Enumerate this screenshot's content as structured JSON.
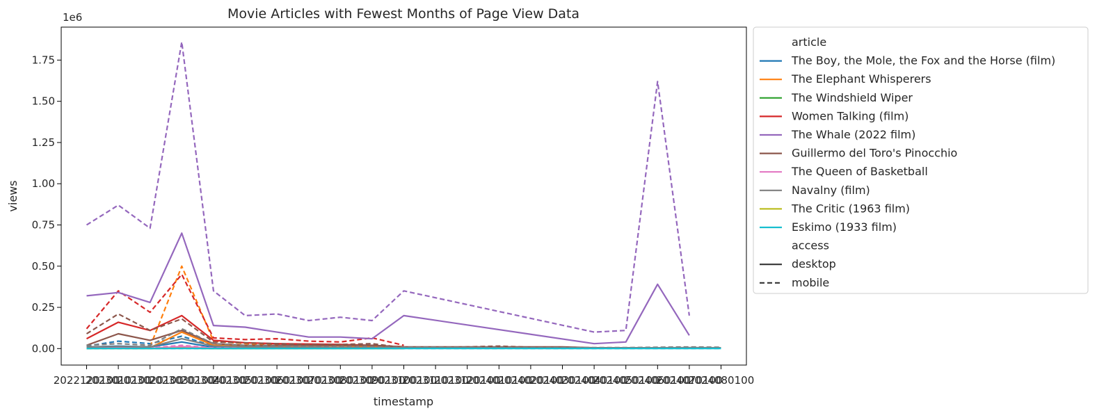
{
  "chart_data": {
    "type": "line",
    "title": "Movie Articles with Fewest Months of Page View Data",
    "xlabel": "timestamp",
    "ylabel": "views",
    "y_offset_label": "1e6",
    "ylim": [
      -0.1,
      1.95
    ],
    "yticks": [
      0,
      0.25,
      0.5,
      0.75,
      1.0,
      1.25,
      1.5,
      1.75
    ],
    "ytick_labels": [
      "0.00",
      "0.25",
      "0.50",
      "0.75",
      "1.00",
      "1.25",
      "1.50",
      "1.75"
    ],
    "xlim": [
      -0.8,
      20.8
    ],
    "xticks": [
      0,
      1,
      2,
      3,
      4,
      5,
      6,
      7,
      8,
      9,
      10,
      11,
      12,
      13,
      14,
      15,
      16,
      17,
      18,
      19,
      20
    ],
    "xtick_labels": [
      "2022120100",
      "2023010100",
      "2023020100",
      "2023030100",
      "2023040100",
      "2023050100",
      "2023060100",
      "2023070100",
      "2023080100",
      "2023090100",
      "2023100100",
      "2023110100",
      "2023120100",
      "2024010100",
      "2024020100",
      "2024030100",
      "2024040100",
      "2024050100",
      "2024060100",
      "2024070100",
      "2024080100"
    ],
    "grid": false,
    "legend_position": "outside-right",
    "legend": {
      "article_title": "article",
      "access_title": "access",
      "access_entries": [
        {
          "name": "desktop",
          "dash": "solid"
        },
        {
          "name": "mobile",
          "dash": "dashed"
        }
      ]
    },
    "series": [
      {
        "name": "The Boy, the Mole, the Fox and the Horse (film)",
        "color": "#1f77b4",
        "desktop": {
          "x": [
            0,
            1,
            2,
            3,
            4,
            5,
            6,
            7,
            8,
            9,
            10
          ],
          "y": [
            0.01,
            0.015,
            0.01,
            0.04,
            0.008,
            0.006,
            0.005,
            0.004,
            0.004,
            0.004,
            0.003
          ]
        },
        "mobile": {
          "x": [
            0,
            1,
            2,
            3,
            4,
            5,
            6,
            7,
            8,
            9,
            10
          ],
          "y": [
            0.015,
            0.045,
            0.03,
            0.075,
            0.015,
            0.012,
            0.01,
            0.009,
            0.008,
            0.008,
            0.006
          ]
        }
      },
      {
        "name": "The Elephant Whisperers",
        "color": "#ff7f0e",
        "desktop": {
          "x": [
            2,
            3,
            4,
            5,
            6,
            7,
            8,
            9,
            10
          ],
          "y": [
            0.005,
            0.1,
            0.02,
            0.012,
            0.01,
            0.008,
            0.007,
            0.006,
            0.005
          ]
        },
        "mobile": {
          "x": [
            2,
            3,
            4,
            5,
            6,
            7,
            8,
            9,
            10
          ],
          "y": [
            0.01,
            0.5,
            0.045,
            0.03,
            0.025,
            0.02,
            0.018,
            0.015,
            0.012
          ]
        }
      },
      {
        "name": "The Windshield Wiper",
        "color": "#2ca02c",
        "desktop": {
          "x": [
            0,
            1,
            2,
            3,
            4,
            5,
            6,
            7,
            8,
            9,
            10
          ],
          "y": [
            0.001,
            0.002,
            0.001,
            0.005,
            0.001,
            0.001,
            0.001,
            0.001,
            0.001,
            0.001,
            0.001
          ]
        },
        "mobile": {
          "x": [
            0,
            1,
            2,
            3,
            4,
            5,
            6,
            7,
            8,
            9,
            10
          ],
          "y": [
            0.001,
            0.003,
            0.002,
            0.008,
            0.002,
            0.001,
            0.001,
            0.001,
            0.001,
            0.001,
            0.001
          ]
        }
      },
      {
        "name": "Women Talking (film)",
        "color": "#d62728",
        "desktop": {
          "x": [
            0,
            1,
            2,
            3,
            4,
            5,
            6,
            7,
            8,
            9,
            10
          ],
          "y": [
            0.06,
            0.16,
            0.11,
            0.2,
            0.05,
            0.035,
            0.03,
            0.028,
            0.025,
            0.02,
            0.01
          ]
        },
        "mobile": {
          "x": [
            0,
            1,
            2,
            3,
            4,
            5,
            6,
            7,
            8,
            9,
            10
          ],
          "y": [
            0.12,
            0.35,
            0.22,
            0.45,
            0.065,
            0.055,
            0.06,
            0.045,
            0.04,
            0.065,
            0.02
          ]
        }
      },
      {
        "name": "The Whale (2022 film)",
        "color": "#9467bd",
        "desktop": {
          "x": [
            0,
            1,
            2,
            3,
            4,
            5,
            6,
            7,
            8,
            9,
            10,
            16,
            17,
            18,
            19
          ],
          "y": [
            0.32,
            0.34,
            0.28,
            0.7,
            0.14,
            0.13,
            0.1,
            0.07,
            0.07,
            0.06,
            0.2,
            0.03,
            0.04,
            0.39,
            0.08
          ]
        },
        "mobile": {
          "x": [
            0,
            1,
            2,
            3,
            4,
            5,
            6,
            7,
            8,
            9,
            10,
            16,
            17,
            18,
            19
          ],
          "y": [
            0.75,
            0.87,
            0.73,
            1.86,
            0.35,
            0.2,
            0.21,
            0.17,
            0.19,
            0.17,
            0.35,
            0.1,
            0.11,
            1.62,
            0.2
          ]
        }
      },
      {
        "name": "Guillermo del Toro's Pinocchio",
        "color": "#8c564b",
        "desktop": {
          "x": [
            0,
            1,
            2,
            3,
            4,
            5,
            6,
            7,
            8,
            9,
            10,
            11,
            12,
            13,
            14,
            15,
            16,
            17,
            18,
            19,
            20
          ],
          "y": [
            0.02,
            0.09,
            0.05,
            0.11,
            0.03,
            0.02,
            0.02,
            0.02,
            0.02,
            0.02,
            0.01,
            0.01,
            0.01,
            0.01,
            0.01,
            0.01,
            0.005,
            0.005,
            0.005,
            0.005,
            0.005
          ]
        },
        "mobile": {
          "x": [
            0,
            1,
            2,
            3,
            4,
            5,
            6,
            7,
            8,
            9,
            10,
            11,
            12,
            13,
            14,
            15,
            16,
            17,
            18,
            19,
            20
          ],
          "y": [
            0.09,
            0.21,
            0.11,
            0.18,
            0.04,
            0.035,
            0.03,
            0.025,
            0.025,
            0.03,
            0.005,
            0.008,
            0.01,
            0.015,
            0.008,
            0.006,
            0.005,
            0.005,
            0.004,
            0.004,
            0.003
          ]
        }
      },
      {
        "name": "The Queen of Basketball",
        "color": "#e377c2",
        "desktop": {
          "x": [
            0,
            1,
            2,
            3,
            4,
            5,
            6,
            7,
            8,
            9,
            10
          ],
          "y": [
            0.002,
            0.003,
            0.002,
            0.012,
            0.003,
            0.002,
            0.002,
            0.002,
            0.002,
            0.002,
            0.001
          ]
        },
        "mobile": {
          "x": [
            0,
            1,
            2,
            3,
            4,
            5,
            6,
            7,
            8,
            9,
            10
          ],
          "y": [
            0.003,
            0.005,
            0.004,
            0.02,
            0.004,
            0.003,
            0.003,
            0.003,
            0.003,
            0.003,
            0.002
          ]
        }
      },
      {
        "name": "Navalny (film)",
        "color": "#7f7f7f",
        "desktop": {
          "x": [
            0,
            1,
            2,
            3,
            4,
            5,
            6,
            7,
            8,
            9,
            10,
            11,
            12,
            13,
            14,
            15,
            16,
            17,
            18,
            19,
            20
          ],
          "y": [
            0.01,
            0.012,
            0.01,
            0.06,
            0.015,
            0.01,
            0.008,
            0.007,
            0.006,
            0.006,
            0.005,
            0.005,
            0.005,
            0.004,
            0.004,
            0.004,
            0.004,
            0.004,
            0.005,
            0.006,
            0.005
          ]
        },
        "mobile": {
          "x": [
            0,
            1,
            2,
            3,
            4,
            5,
            6,
            7,
            8,
            9,
            10,
            11,
            12,
            13,
            14,
            15,
            16,
            17,
            18,
            19,
            20
          ],
          "y": [
            0.02,
            0.03,
            0.02,
            0.12,
            0.03,
            0.02,
            0.015,
            0.012,
            0.01,
            0.01,
            0.008,
            0.008,
            0.007,
            0.007,
            0.006,
            0.006,
            0.006,
            0.006,
            0.008,
            0.01,
            0.008
          ]
        }
      },
      {
        "name": "The Critic (1963 film)",
        "color": "#bcbd22",
        "desktop": {
          "x": [
            0,
            1,
            2,
            3,
            4,
            5,
            6,
            7,
            8,
            9,
            10
          ],
          "y": [
            0.001,
            0.001,
            0.001,
            0.002,
            0.001,
            0.001,
            0.001,
            0.001,
            0.001,
            0.001,
            0.001
          ]
        },
        "mobile": {
          "x": [
            0,
            1,
            2,
            3,
            4,
            5,
            6,
            7,
            8,
            9,
            10
          ],
          "y": [
            0.001,
            0.001,
            0.001,
            0.002,
            0.001,
            0.001,
            0.001,
            0.001,
            0.001,
            0.001,
            0.001
          ]
        }
      },
      {
        "name": "Eskimo (1933 film)",
        "color": "#17becf",
        "desktop": {
          "x": [
            0,
            1,
            2,
            3,
            4,
            5,
            6,
            7,
            8,
            9,
            10,
            11,
            12,
            13,
            14,
            15,
            16,
            17,
            18,
            19,
            20
          ],
          "y": [
            0.001,
            0.001,
            0.001,
            0.001,
            0.001,
            0.001,
            0.001,
            0.001,
            0.001,
            0.001,
            0.001,
            0.001,
            0.001,
            0.001,
            0.001,
            0.001,
            0.001,
            0.001,
            0.001,
            0.001,
            0.001
          ]
        },
        "mobile": {
          "x": [
            0,
            1,
            2,
            3,
            4,
            5,
            6,
            7,
            8,
            9,
            10,
            11,
            12,
            13,
            14,
            15,
            16,
            17,
            18,
            19,
            20
          ],
          "y": [
            0.001,
            0.001,
            0.001,
            0.001,
            0.001,
            0.001,
            0.001,
            0.001,
            0.001,
            0.001,
            0.001,
            0.001,
            0.001,
            0.001,
            0.001,
            0.001,
            0.001,
            0.001,
            0.001,
            0.001,
            0.001
          ]
        }
      }
    ]
  }
}
